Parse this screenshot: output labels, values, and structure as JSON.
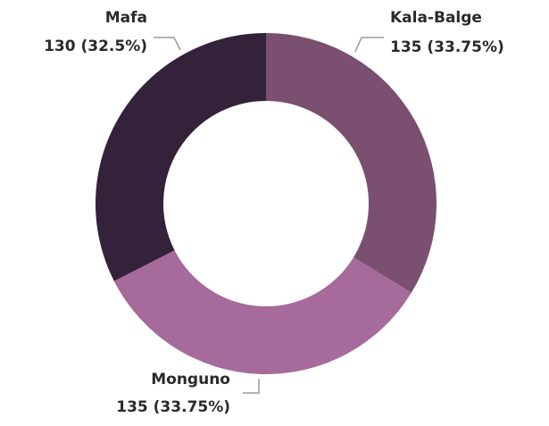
{
  "chart_data": {
    "type": "donut",
    "categories": [
      "Kala-Balge",
      "Monguno",
      "Mafa"
    ],
    "values": [
      135,
      135,
      130
    ],
    "value_labels": [
      "135 (33.75%)",
      "135 (33.75%)",
      "130 (32.5%)"
    ],
    "colors": [
      "#7b4f6f",
      "#a66a9b",
      "#33223a"
    ]
  }
}
